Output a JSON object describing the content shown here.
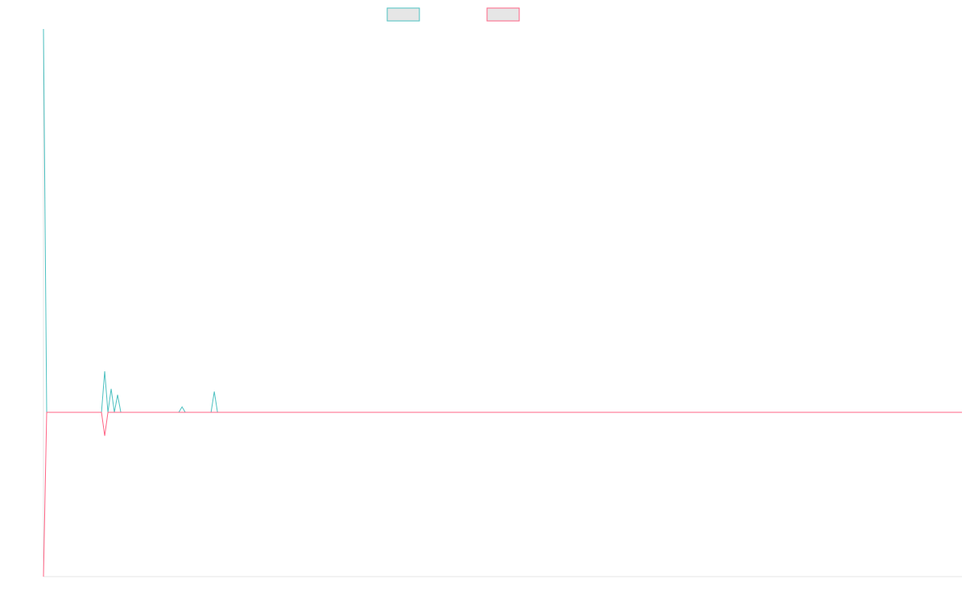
{
  "chart_data": {
    "type": "line",
    "xlim": [
      0,
      285
    ],
    "ylim": [
      -30,
      70
    ],
    "series": [
      {
        "color": "#4bc0c0",
        "x": [
          0,
          1,
          18,
          19,
          20,
          21,
          22,
          23,
          24,
          42,
          43,
          44,
          52,
          53,
          54,
          285
        ],
        "values": [
          70,
          0,
          0,
          7.5,
          0,
          4.3,
          0,
          3.2,
          0,
          0,
          1,
          0,
          0,
          3.8,
          0,
          0
        ]
      },
      {
        "color": "#ff6384",
        "x": [
          0,
          1,
          18,
          19,
          20,
          285
        ],
        "values": [
          -30,
          0,
          0,
          -4.3,
          0,
          0
        ]
      }
    ]
  }
}
